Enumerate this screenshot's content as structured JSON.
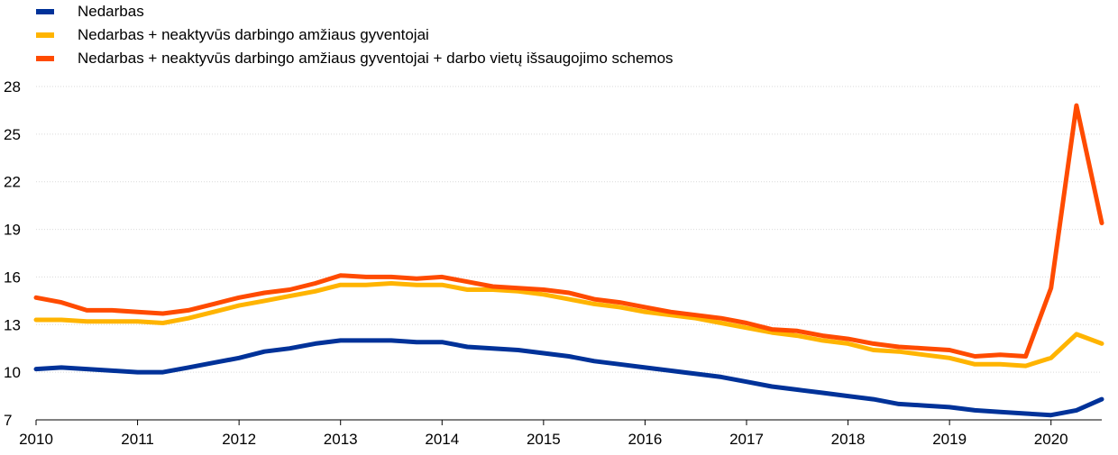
{
  "chart_data": {
    "type": "line",
    "title": "",
    "xlabel": "",
    "ylabel": "",
    "ylim": [
      7,
      28
    ],
    "yticks": [
      7,
      10,
      13,
      16,
      19,
      22,
      25,
      28
    ],
    "xlim": [
      2010,
      2020.5
    ],
    "xticks": [
      "2010",
      "2011",
      "2012",
      "2013",
      "2014",
      "2015",
      "2016",
      "2017",
      "2018",
      "2019",
      "2020"
    ],
    "grid": "horizontal",
    "legend_position": "top-left",
    "x": [
      2010.0,
      2010.25,
      2010.5,
      2010.75,
      2011.0,
      2011.25,
      2011.5,
      2011.75,
      2012.0,
      2012.25,
      2012.5,
      2012.75,
      2013.0,
      2013.25,
      2013.5,
      2013.75,
      2014.0,
      2014.25,
      2014.5,
      2014.75,
      2015.0,
      2015.25,
      2015.5,
      2015.75,
      2016.0,
      2016.25,
      2016.5,
      2016.75,
      2017.0,
      2017.25,
      2017.5,
      2017.75,
      2018.0,
      2018.25,
      2018.5,
      2018.75,
      2019.0,
      2019.25,
      2019.5,
      2019.75,
      2020.0,
      2020.25,
      2020.5
    ],
    "series": [
      {
        "name": "Nedarbas",
        "color": "#003299",
        "values": [
          10.2,
          10.3,
          10.2,
          10.1,
          10.0,
          10.0,
          10.3,
          10.6,
          10.9,
          11.3,
          11.5,
          11.8,
          12.0,
          12.0,
          12.0,
          11.9,
          11.9,
          11.6,
          11.5,
          11.4,
          11.2,
          11.0,
          10.7,
          10.5,
          10.3,
          10.1,
          9.9,
          9.7,
          9.4,
          9.1,
          8.9,
          8.7,
          8.5,
          8.3,
          8.0,
          7.9,
          7.8,
          7.6,
          7.5,
          7.4,
          7.3,
          7.6,
          8.3
        ]
      },
      {
        "name": "Nedarbas + neaktyvūs darbingo amžiaus gyventojai",
        "color": "#ffb400",
        "values": [
          13.3,
          13.3,
          13.2,
          13.2,
          13.2,
          13.1,
          13.4,
          13.8,
          14.2,
          14.5,
          14.8,
          15.1,
          15.5,
          15.5,
          15.6,
          15.5,
          15.5,
          15.2,
          15.2,
          15.1,
          14.9,
          14.6,
          14.3,
          14.1,
          13.8,
          13.6,
          13.4,
          13.1,
          12.8,
          12.5,
          12.3,
          12.0,
          11.8,
          11.4,
          11.3,
          11.1,
          10.9,
          10.5,
          10.5,
          10.4,
          10.9,
          12.4,
          11.8
        ]
      },
      {
        "name": "Nedarbas + neaktyvūs darbingo amžiaus gyventojai + darbo vietų išsaugojimo schemos",
        "color": "#ff4b00",
        "values": [
          14.7,
          14.4,
          13.9,
          13.9,
          13.8,
          13.7,
          13.9,
          14.3,
          14.7,
          15.0,
          15.2,
          15.6,
          16.1,
          16.0,
          16.0,
          15.9,
          16.0,
          15.7,
          15.4,
          15.3,
          15.2,
          15.0,
          14.6,
          14.4,
          14.1,
          13.8,
          13.6,
          13.4,
          13.1,
          12.7,
          12.6,
          12.3,
          12.1,
          11.8,
          11.6,
          11.5,
          11.4,
          11.0,
          11.1,
          11.0,
          15.3,
          26.8,
          19.4
        ]
      }
    ]
  }
}
